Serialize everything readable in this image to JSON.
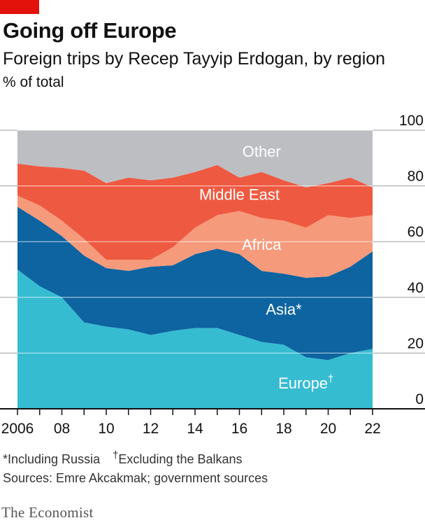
{
  "header": {
    "title": "Going off Europe",
    "subtitle": "Foreign trips by Recep Tayyip Erdogan, by region",
    "unit": "% of total"
  },
  "footnotes": {
    "asia_note": "*Including Russia",
    "europe_note_mark": "†",
    "europe_note": "Excluding the Balkans",
    "sources": "Sources: Emre Akcakmak; government sources"
  },
  "brand": "The Economist",
  "colors": {
    "europe": "#36bcd1",
    "asia": "#0d64a0",
    "africa": "#f69a7c",
    "middle_east": "#ee5a41",
    "other": "#bcbec2",
    "accent_red": "#e3120b"
  },
  "chart_data": {
    "type": "area",
    "stacked": true,
    "x": [
      2006,
      2007,
      2008,
      2009,
      2010,
      2011,
      2012,
      2013,
      2014,
      2015,
      2016,
      2017,
      2018,
      2019,
      2020,
      2021,
      2022
    ],
    "x_tick_labels": [
      "2006",
      "08",
      "10",
      "12",
      "14",
      "16",
      "18",
      "20",
      "22"
    ],
    "x_tick_values": [
      2006,
      2008,
      2010,
      2012,
      2014,
      2016,
      2018,
      2020,
      2022
    ],
    "y_tick_labels": [
      "0",
      "20",
      "40",
      "60",
      "80",
      "100"
    ],
    "ylim": [
      0,
      100
    ],
    "y_axis_side": "right",
    "grid": true,
    "series": [
      {
        "key": "europe",
        "name": "Europe",
        "label_suffix": "†",
        "values": [
          50,
          44,
          40,
          31,
          29.5,
          28.5,
          26.5,
          28,
          29,
          29,
          26.5,
          24,
          23,
          18.5,
          17.5,
          20,
          21.5
        ]
      },
      {
        "key": "asia",
        "name": "Asia*",
        "label_suffix": "",
        "values": [
          22.5,
          23.5,
          22,
          24,
          21,
          21,
          24.5,
          23.5,
          26.5,
          28.5,
          29,
          25.5,
          25.5,
          28.5,
          30,
          31,
          35
        ]
      },
      {
        "key": "africa",
        "name": "Africa",
        "label_suffix": "",
        "values": [
          4,
          5.5,
          5.5,
          6,
          3,
          4,
          2.5,
          6.5,
          9.5,
          12,
          15.5,
          19,
          19,
          18,
          22,
          17.5,
          13
        ]
      },
      {
        "key": "middle_east",
        "name": "Middle East",
        "label_suffix": "",
        "values": [
          11.5,
          14,
          19,
          24.5,
          27.5,
          29.5,
          28.5,
          25,
          20,
          18,
          12,
          16.5,
          14.5,
          14.5,
          11.5,
          14.5,
          10
        ]
      },
      {
        "key": "other",
        "name": "Other",
        "label_suffix": "",
        "values": [
          12,
          13,
          13.5,
          14.5,
          19,
          17,
          18,
          17,
          15,
          12.5,
          17,
          15,
          18,
          20.5,
          19,
          17,
          20.5
        ]
      }
    ]
  }
}
